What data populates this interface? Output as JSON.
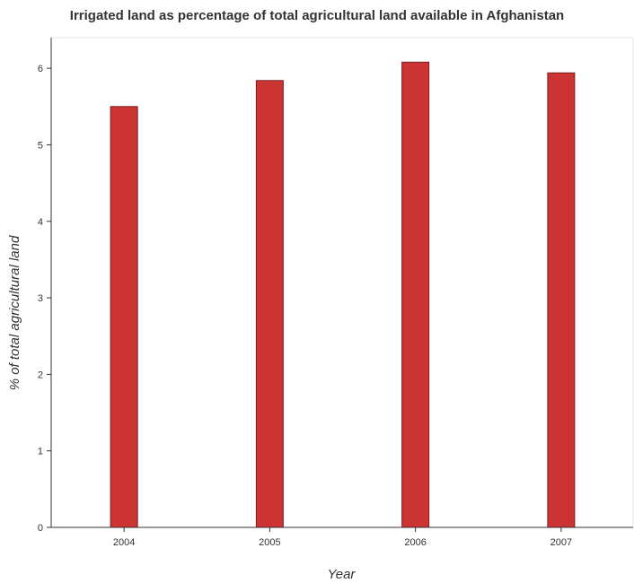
{
  "chart_data": {
    "type": "bar",
    "title": "Irrigated land as percentage of total agricultural land available in Afghanistan",
    "xlabel": "Year",
    "ylabel": "% of total agricultural land",
    "categories": [
      "2004",
      "2005",
      "2006",
      "2007"
    ],
    "values": [
      5.5,
      5.84,
      6.08,
      5.94
    ],
    "ylim": [
      0,
      6.4
    ],
    "yticks": [
      "0",
      "1",
      "2",
      "3",
      "4",
      "5",
      "6"
    ],
    "grid": false,
    "legend": "none",
    "colors": {
      "bar_fill": "#cc3333",
      "bar_stroke": "#7a1f1f",
      "axis": "#333333"
    }
  }
}
